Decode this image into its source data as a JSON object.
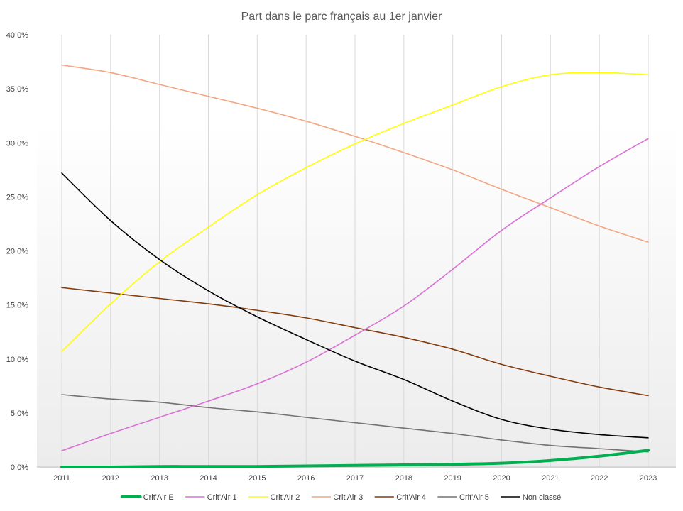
{
  "chart_data": {
    "type": "line",
    "title": "Part dans le parc français au 1er janvier",
    "xlabel": "",
    "ylabel": "",
    "x": [
      "2011",
      "2012",
      "2013",
      "2014",
      "2015",
      "2016",
      "2017",
      "2018",
      "2019",
      "2020",
      "2021",
      "2022",
      "2023"
    ],
    "yticks": [
      "0,0%",
      "5,0%",
      "10,0%",
      "15,0%",
      "20,0%",
      "25,0%",
      "30,0%",
      "35,0%",
      "40,0%"
    ],
    "ylim": [
      0,
      40
    ],
    "grid": "vertical",
    "legend_position": "bottom",
    "series": [
      {
        "name": "Crit'Air E",
        "color": "#00B050",
        "width": 4,
        "values": [
          0.0,
          0.0,
          0.05,
          0.05,
          0.05,
          0.1,
          0.15,
          0.2,
          0.25,
          0.35,
          0.6,
          1.0,
          1.55
        ]
      },
      {
        "name": "Crit'Air 1",
        "color": "#DA70D6",
        "width": 1.6,
        "values": [
          1.5,
          3.1,
          4.6,
          6.1,
          7.7,
          9.7,
          12.2,
          14.9,
          18.3,
          21.9,
          24.9,
          27.8,
          30.4
        ]
      },
      {
        "name": "Crit'Air 2",
        "color": "#FFFF00",
        "width": 1.6,
        "values": [
          10.7,
          15.1,
          19.0,
          22.2,
          25.2,
          27.7,
          29.9,
          31.8,
          33.5,
          35.2,
          36.3,
          36.5,
          36.3
        ]
      },
      {
        "name": "Crit'Air 3",
        "color": "#F4A582",
        "width": 1.6,
        "values": [
          37.2,
          36.5,
          35.4,
          34.3,
          33.2,
          32.0,
          30.6,
          29.1,
          27.5,
          25.7,
          24.0,
          22.3,
          20.8
        ]
      },
      {
        "name": "Crit'Air 4",
        "color": "#843C0C",
        "width": 1.6,
        "values": [
          16.6,
          16.1,
          15.6,
          15.1,
          14.5,
          13.8,
          12.9,
          12.0,
          10.9,
          9.5,
          8.4,
          7.4,
          6.6
        ]
      },
      {
        "name": "Crit'Air 5",
        "color": "#767171",
        "width": 1.6,
        "values": [
          6.7,
          6.3,
          6.0,
          5.5,
          5.1,
          4.6,
          4.1,
          3.6,
          3.1,
          2.5,
          2.0,
          1.7,
          1.4
        ]
      },
      {
        "name": "Non classé",
        "color": "#000000",
        "width": 1.6,
        "values": [
          27.2,
          22.8,
          19.2,
          16.3,
          13.9,
          11.8,
          9.8,
          8.1,
          6.1,
          4.4,
          3.5,
          3.0,
          2.7
        ]
      }
    ]
  }
}
